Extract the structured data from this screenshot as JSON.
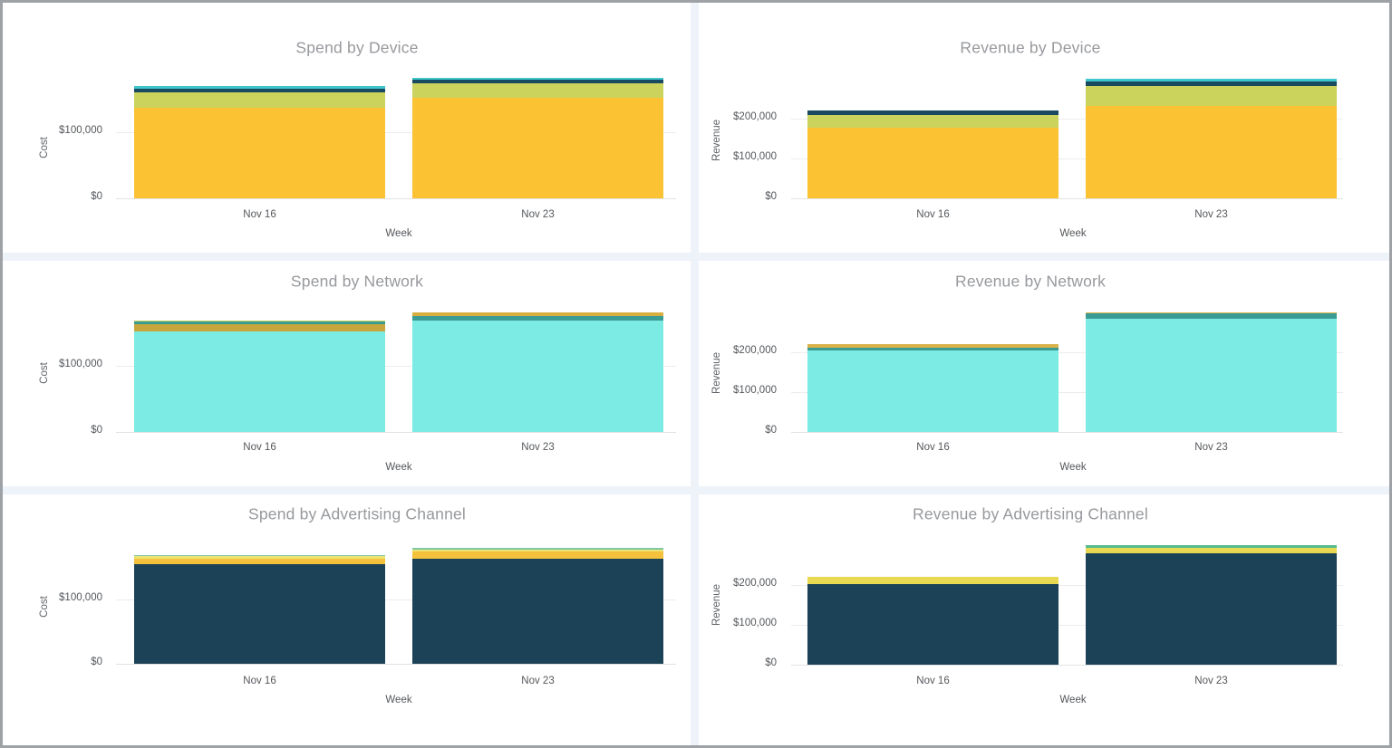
{
  "dashboard": {
    "panel_count": 6,
    "gutter_color": "#EEF2F9",
    "frame_color": "#9EA1A5",
    "title_color": "#97999D",
    "axis_text_color": "#54575B"
  },
  "chart_data": [
    {
      "type": "bar",
      "stacked": true,
      "title": "Spend by Device",
      "xlabel": "Week",
      "ylabel": "Cost",
      "categories": [
        "Nov 16",
        "Nov 23"
      ],
      "yticks": [
        {
          "label": "$0",
          "value": 0
        },
        {
          "label": "$100,000",
          "value": 100000
        }
      ],
      "ylim": [
        0,
        185000
      ],
      "grid": "horizontal",
      "legend": "none",
      "bars": [
        {
          "category": "Nov 16",
          "segments": [
            {
              "name": "yellow",
              "color": "#FBC233",
              "value": 136000
            },
            {
              "name": "olive",
              "color": "#CBD35C",
              "value": 23000
            },
            {
              "name": "dark-teal",
              "color": "#1A4A5F",
              "value": 5000
            },
            {
              "name": "cyan",
              "color": "#3EC6CD",
              "value": 5000
            }
          ]
        },
        {
          "category": "Nov 23",
          "segments": [
            {
              "name": "yellow",
              "color": "#FBC233",
              "value": 151000
            },
            {
              "name": "olive",
              "color": "#CBD35C",
              "value": 21500
            },
            {
              "name": "dark-teal",
              "color": "#1A4A5F",
              "value": 6000
            },
            {
              "name": "cyan",
              "color": "#3EC6CD",
              "value": 2500
            }
          ]
        }
      ]
    },
    {
      "type": "bar",
      "stacked": true,
      "title": "Revenue by Device",
      "xlabel": "Week",
      "ylabel": "Revenue",
      "categories": [
        "Nov 16",
        "Nov 23"
      ],
      "yticks": [
        {
          "label": "$0",
          "value": 0
        },
        {
          "label": "$100,000",
          "value": 100000
        },
        {
          "label": "$200,000",
          "value": 200000
        }
      ],
      "ylim": [
        0,
        305000
      ],
      "grid": "horizontal",
      "legend": "none",
      "bars": [
        {
          "category": "Nov 16",
          "segments": [
            {
              "name": "yellow",
              "color": "#FBC233",
              "value": 177000
            },
            {
              "name": "olive",
              "color": "#CBD35C",
              "value": 32000
            },
            {
              "name": "dark-teal",
              "color": "#1A4A5F",
              "value": 11000
            }
          ]
        },
        {
          "category": "Nov 23",
          "segments": [
            {
              "name": "yellow",
              "color": "#FBC233",
              "value": 231000
            },
            {
              "name": "olive",
              "color": "#CBD35C",
              "value": 50000
            },
            {
              "name": "dark-teal",
              "color": "#1A4A5F",
              "value": 13000
            },
            {
              "name": "cyan",
              "color": "#3EC6CD",
              "value": 6000
            }
          ]
        }
      ]
    },
    {
      "type": "bar",
      "stacked": true,
      "title": "Spend by Network",
      "xlabel": "Week",
      "ylabel": "Cost",
      "categories": [
        "Nov 16",
        "Nov 23"
      ],
      "yticks": [
        {
          "label": "$0",
          "value": 0
        },
        {
          "label": "$100,000",
          "value": 100000
        }
      ],
      "ylim": [
        0,
        185000
      ],
      "grid": "horizontal",
      "legend": "none",
      "bars": [
        {
          "category": "Nov 16",
          "segments": [
            {
              "name": "turquoise",
              "color": "#7CEBE3",
              "value": 152000
            },
            {
              "name": "gold",
              "color": "#C6A63D",
              "value": 11000
            },
            {
              "name": "teal",
              "color": "#3B9C94",
              "value": 4500
            },
            {
              "name": "olive",
              "color": "#CBD35C",
              "value": 1500
            }
          ]
        },
        {
          "category": "Nov 23",
          "segments": [
            {
              "name": "turquoise",
              "color": "#7CEBE3",
              "value": 169000
            },
            {
              "name": "teal",
              "color": "#3B9C94",
              "value": 7000
            },
            {
              "name": "gold",
              "color": "#D8AE3F",
              "value": 5000
            }
          ]
        }
      ]
    },
    {
      "type": "bar",
      "stacked": true,
      "title": "Revenue by Network",
      "xlabel": "Week",
      "ylabel": "Revenue",
      "categories": [
        "Nov 16",
        "Nov 23"
      ],
      "yticks": [
        {
          "label": "$0",
          "value": 0
        },
        {
          "label": "$100,000",
          "value": 100000
        },
        {
          "label": "$200,000",
          "value": 200000
        }
      ],
      "ylim": [
        0,
        305000
      ],
      "grid": "horizontal",
      "legend": "none",
      "bars": [
        {
          "category": "Nov 16",
          "segments": [
            {
              "name": "turquoise",
              "color": "#7CEBE3",
              "value": 205000
            },
            {
              "name": "teal",
              "color": "#3B9C94",
              "value": 7000
            },
            {
              "name": "gold",
              "color": "#D8B24A",
              "value": 8000
            }
          ]
        },
        {
          "category": "Nov 23",
          "segments": [
            {
              "name": "turquoise",
              "color": "#7CEBE3",
              "value": 284000
            },
            {
              "name": "teal",
              "color": "#3B9C94",
              "value": 14000
            },
            {
              "name": "gold",
              "color": "#D8B24A",
              "value": 2000
            }
          ]
        }
      ]
    },
    {
      "type": "bar",
      "stacked": true,
      "title": "Spend by Advertising Channel",
      "xlabel": "Week",
      "ylabel": "Cost",
      "categories": [
        "Nov 16",
        "Nov 23"
      ],
      "yticks": [
        {
          "label": "$0",
          "value": 0
        },
        {
          "label": "$100,000",
          "value": 100000
        }
      ],
      "ylim": [
        0,
        185000
      ],
      "grid": "horizontal",
      "legend": "none",
      "bars": [
        {
          "category": "Nov 16",
          "segments": [
            {
              "name": "navy",
              "color": "#1B4256",
              "value": 155000
            },
            {
              "name": "amber",
              "color": "#F4C13C",
              "value": 9000
            },
            {
              "name": "pale-yellow",
              "color": "#EDE272",
              "value": 3000
            },
            {
              "name": "mint",
              "color": "#7EC9A3",
              "value": 2000
            }
          ]
        },
        {
          "category": "Nov 23",
          "segments": [
            {
              "name": "navy",
              "color": "#1B4256",
              "value": 164000
            },
            {
              "name": "amber",
              "color": "#F4C13C",
              "value": 10000
            },
            {
              "name": "pale-yellow",
              "color": "#EDE272",
              "value": 4000
            },
            {
              "name": "mint",
              "color": "#7EC9A3",
              "value": 3000
            }
          ]
        }
      ]
    },
    {
      "type": "bar",
      "stacked": true,
      "title": "Revenue by Advertising Channel",
      "xlabel": "Week",
      "ylabel": "Revenue",
      "categories": [
        "Nov 16",
        "Nov 23"
      ],
      "yticks": [
        {
          "label": "$0",
          "value": 0
        },
        {
          "label": "$100,000",
          "value": 100000
        },
        {
          "label": "$200,000",
          "value": 200000
        }
      ],
      "ylim": [
        0,
        305000
      ],
      "grid": "horizontal",
      "legend": "none",
      "bars": [
        {
          "category": "Nov 16",
          "segments": [
            {
              "name": "navy",
              "color": "#1B4256",
              "value": 203000
            },
            {
              "name": "yellow",
              "color": "#E9D852",
              "value": 17000
            }
          ]
        },
        {
          "category": "Nov 23",
          "segments": [
            {
              "name": "navy",
              "color": "#1B4256",
              "value": 279000
            },
            {
              "name": "yellow",
              "color": "#E9D852",
              "value": 13500
            },
            {
              "name": "green",
              "color": "#55BB8D",
              "value": 7500
            }
          ]
        }
      ]
    }
  ]
}
